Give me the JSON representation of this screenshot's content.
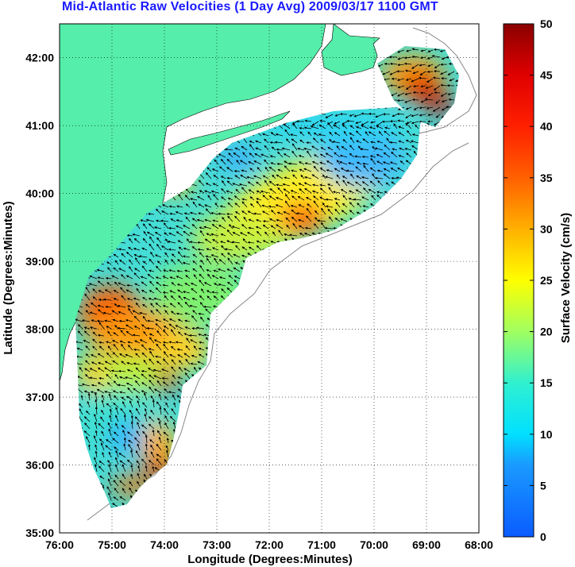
{
  "title": "Mid-Atlantic Raw Velocities (1 Day Avg) 2009/03/17 1100 GMT",
  "xlabel": "Longitude (Degrees:Minutes)",
  "ylabel": "Latitude (Degrees:Minutes)",
  "x_ticks": [
    "76:00",
    "75:00",
    "74:00",
    "73:00",
    "72:00",
    "71:00",
    "70:00",
    "69:00",
    "68:00"
  ],
  "y_ticks": [
    "35:00",
    "36:00",
    "37:00",
    "38:00",
    "39:00",
    "40:00",
    "41:00",
    "42:00"
  ],
  "colorbar": {
    "label": "Surface Velocity (cm/s)",
    "ticks": [
      "0",
      "5",
      "10",
      "15",
      "20",
      "25",
      "30",
      "35",
      "40",
      "45",
      "50"
    ],
    "min": 0,
    "max": 50
  },
  "colors": {
    "land": "#55eeaa",
    "title": "#1a1aff",
    "arrow": "#000000"
  },
  "chart_data": {
    "type": "heatmap",
    "xlim": [
      -76,
      -68
    ],
    "ylim": [
      35,
      42.5
    ],
    "grid": "dotted",
    "value_range": [
      0,
      50
    ]
  }
}
